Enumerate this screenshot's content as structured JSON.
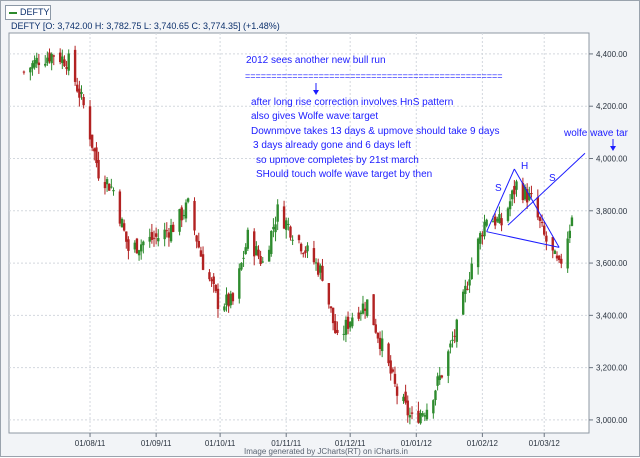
{
  "tab_label": "DEFTY",
  "chart_header": "DEFTY [O: 3,742.00  H: 3,782.75  L: 3,740.65  C: 3,774.35] (+1.48%)",
  "footer": "Image generated by JCharts(RT) on iCharts.in",
  "chart_data": {
    "type": "candlestick",
    "title": "",
    "xlabel": "",
    "ylabel": "",
    "ylim": [
      2950,
      4480
    ],
    "yticks": [
      3000,
      3200,
      3400,
      3600,
      3800,
      4000,
      4200,
      4400
    ],
    "ytick_labels": [
      "3,000.00",
      "3,200.00",
      "3,400.00",
      "3,600.00",
      "3,800.00",
      "4,000.00",
      "4,200.00",
      "4,400.00"
    ],
    "xtick_labels": [
      "01/08/11",
      "01/09/11",
      "01/10/11",
      "01/11/11",
      "01/12/11",
      "01/01/12",
      "01/02/12",
      "01/03/12"
    ],
    "grid": true,
    "last_candle": {
      "open": 3742.0,
      "high": 3782.75,
      "low": 3740.65,
      "close": 3774.35,
      "change_pct": 1.48
    },
    "approx_close_path": [
      [
        "2011-07-01",
        4330
      ],
      [
        "2011-07-08",
        4380
      ],
      [
        "2011-07-15",
        4400
      ],
      [
        "2011-07-22",
        4370
      ],
      [
        "2011-07-29",
        4200
      ],
      [
        "2011-08-05",
        3950
      ],
      [
        "2011-08-12",
        3880
      ],
      [
        "2011-08-19",
        3650
      ],
      [
        "2011-08-26",
        3680
      ],
      [
        "2011-09-02",
        3700
      ],
      [
        "2011-09-09",
        3740
      ],
      [
        "2011-09-16",
        3820
      ],
      [
        "2011-09-23",
        3600
      ],
      [
        "2011-09-30",
        3450
      ],
      [
        "2011-10-07",
        3450
      ],
      [
        "2011-10-14",
        3700
      ],
      [
        "2011-10-21",
        3600
      ],
      [
        "2011-10-28",
        3800
      ],
      [
        "2011-11-04",
        3720
      ],
      [
        "2011-11-11",
        3640
      ],
      [
        "2011-11-18",
        3560
      ],
      [
        "2011-11-25",
        3300
      ],
      [
        "2011-12-02",
        3400
      ],
      [
        "2011-12-09",
        3450
      ],
      [
        "2011-12-16",
        3280
      ],
      [
        "2011-12-23",
        3100
      ],
      [
        "2011-12-30",
        3000
      ],
      [
        "2012-01-06",
        3050
      ],
      [
        "2012-01-13",
        3180
      ],
      [
        "2012-01-20",
        3350
      ],
      [
        "2012-01-27",
        3600
      ],
      [
        "2012-02-03",
        3780
      ],
      [
        "2012-02-10",
        3750
      ],
      [
        "2012-02-17",
        3900
      ],
      [
        "2012-02-24",
        3840
      ],
      [
        "2012-03-01",
        3700
      ],
      [
        "2012-03-08",
        3580
      ],
      [
        "2012-03-14",
        3774
      ]
    ],
    "annotations": {
      "lines": [
        "2012 sees another new bull run",
        "=================================================",
        "after long rise correction involves HnS pattern",
        "also gives Wolfe wave target",
        "Downmove takes 13 days & upmove should take 9 days",
        "3 days already gone and 6 days left",
        "so upmove completes by 21st march",
        "SHould touch wolfe wave target by then"
      ],
      "pattern_labels": [
        "S",
        "H",
        "S"
      ],
      "wolfe_label": "wolfe wave tar"
    }
  },
  "colors": {
    "bull": "#2e8b2e",
    "bear": "#b22222",
    "annotation": "#1c1cff",
    "grid": "#d3d8de",
    "plot_bg": "#ffffff",
    "frame_bg": "#f2f4f7"
  }
}
